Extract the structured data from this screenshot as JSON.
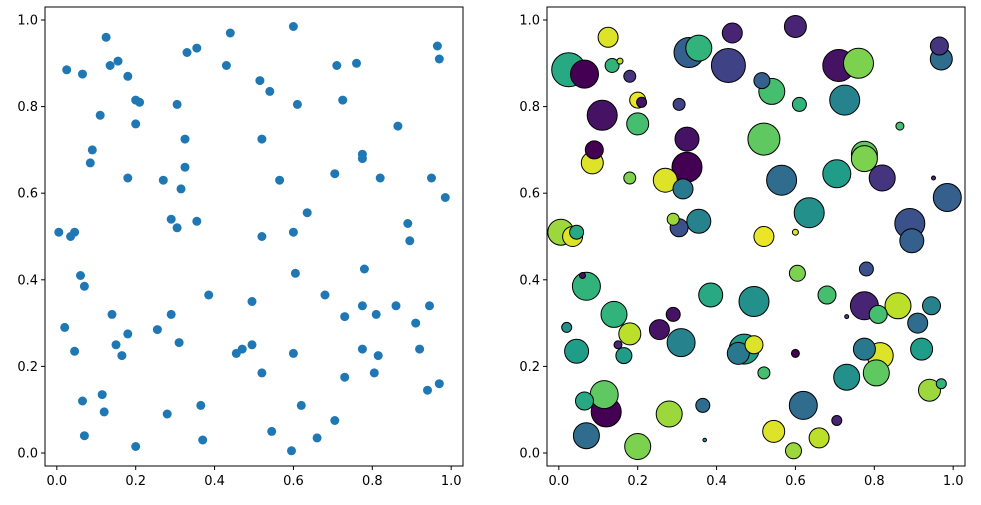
{
  "chart_data": [
    {
      "type": "scatter",
      "title": "",
      "xlabel": "",
      "ylabel": "",
      "xlim": [
        -0.03,
        1.03
      ],
      "ylim": [
        -0.03,
        1.03
      ],
      "xticks": [
        "0.0",
        "0.2",
        "0.4",
        "0.6",
        "0.8",
        "1.0"
      ],
      "yticks": [
        "0.0",
        "0.2",
        "0.4",
        "0.6",
        "0.8",
        "1.0"
      ],
      "grid": false,
      "marker_color": "#1f77b4",
      "points": [
        [
          0.025,
          0.885
        ],
        [
          0.065,
          0.875
        ],
        [
          0.125,
          0.96
        ],
        [
          0.135,
          0.895
        ],
        [
          0.155,
          0.905
        ],
        [
          0.18,
          0.87
        ],
        [
          0.2,
          0.815
        ],
        [
          0.21,
          0.81
        ],
        [
          0.11,
          0.78
        ],
        [
          0.2,
          0.76
        ],
        [
          0.09,
          0.7
        ],
        [
          0.085,
          0.67
        ],
        [
          0.18,
          0.635
        ],
        [
          0.33,
          0.925
        ],
        [
          0.355,
          0.935
        ],
        [
          0.43,
          0.895
        ],
        [
          0.44,
          0.97
        ],
        [
          0.305,
          0.805
        ],
        [
          0.325,
          0.725
        ],
        [
          0.325,
          0.66
        ],
        [
          0.27,
          0.63
        ],
        [
          0.315,
          0.61
        ],
        [
          0.29,
          0.54
        ],
        [
          0.305,
          0.52
        ],
        [
          0.355,
          0.535
        ],
        [
          0.6,
          0.985
        ],
        [
          0.515,
          0.86
        ],
        [
          0.54,
          0.835
        ],
        [
          0.61,
          0.805
        ],
        [
          0.52,
          0.725
        ],
        [
          0.565,
          0.63
        ],
        [
          0.52,
          0.5
        ],
        [
          0.6,
          0.51
        ],
        [
          0.635,
          0.555
        ],
        [
          0.71,
          0.895
        ],
        [
          0.76,
          0.9
        ],
        [
          0.725,
          0.815
        ],
        [
          0.775,
          0.69
        ],
        [
          0.775,
          0.68
        ],
        [
          0.705,
          0.645
        ],
        [
          0.82,
          0.635
        ],
        [
          0.865,
          0.755
        ],
        [
          0.965,
          0.94
        ],
        [
          0.97,
          0.91
        ],
        [
          0.95,
          0.635
        ],
        [
          0.985,
          0.59
        ],
        [
          0.89,
          0.53
        ],
        [
          0.895,
          0.49
        ],
        [
          0.005,
          0.51
        ],
        [
          0.035,
          0.5
        ],
        [
          0.045,
          0.51
        ],
        [
          0.06,
          0.41
        ],
        [
          0.07,
          0.385
        ],
        [
          0.02,
          0.29
        ],
        [
          0.045,
          0.235
        ],
        [
          0.14,
          0.32
        ],
        [
          0.15,
          0.25
        ],
        [
          0.18,
          0.275
        ],
        [
          0.165,
          0.225
        ],
        [
          0.065,
          0.12
        ],
        [
          0.115,
          0.135
        ],
        [
          0.12,
          0.095
        ],
        [
          0.07,
          0.04
        ],
        [
          0.2,
          0.015
        ],
        [
          0.255,
          0.285
        ],
        [
          0.29,
          0.32
        ],
        [
          0.31,
          0.255
        ],
        [
          0.28,
          0.09
        ],
        [
          0.365,
          0.11
        ],
        [
          0.37,
          0.03
        ],
        [
          0.385,
          0.365
        ],
        [
          0.495,
          0.35
        ],
        [
          0.455,
          0.23
        ],
        [
          0.47,
          0.24
        ],
        [
          0.495,
          0.25
        ],
        [
          0.52,
          0.185
        ],
        [
          0.545,
          0.05
        ],
        [
          0.605,
          0.415
        ],
        [
          0.6,
          0.23
        ],
        [
          0.62,
          0.11
        ],
        [
          0.595,
          0.005
        ],
        [
          0.66,
          0.035
        ],
        [
          0.68,
          0.365
        ],
        [
          0.78,
          0.425
        ],
        [
          0.775,
          0.34
        ],
        [
          0.73,
          0.315
        ],
        [
          0.775,
          0.24
        ],
        [
          0.815,
          0.225
        ],
        [
          0.81,
          0.32
        ],
        [
          0.805,
          0.185
        ],
        [
          0.73,
          0.175
        ],
        [
          0.705,
          0.075
        ],
        [
          0.86,
          0.34
        ],
        [
          0.91,
          0.3
        ],
        [
          0.945,
          0.34
        ],
        [
          0.92,
          0.24
        ],
        [
          0.94,
          0.145
        ],
        [
          0.97,
          0.16
        ]
      ]
    },
    {
      "type": "scatter",
      "title": "",
      "xlabel": "",
      "ylabel": "",
      "xlim": [
        -0.03,
        1.03
      ],
      "ylim": [
        -0.03,
        1.03
      ],
      "xticks": [
        "0.0",
        "0.2",
        "0.4",
        "0.6",
        "0.8",
        "1.0"
      ],
      "yticks": [
        "0.0",
        "0.2",
        "0.4",
        "0.6",
        "0.8",
        "1.0"
      ],
      "grid": false,
      "colormap": "viridis",
      "edge_color": "#000000",
      "points": [
        [
          0.025,
          0.885,
          17,
          0.6
        ],
        [
          0.065,
          0.875,
          14,
          0.0
        ],
        [
          0.125,
          0.96,
          10,
          0.95
        ],
        [
          0.135,
          0.895,
          7,
          0.65
        ],
        [
          0.155,
          0.905,
          3,
          0.9
        ],
        [
          0.18,
          0.87,
          6,
          0.15
        ],
        [
          0.2,
          0.815,
          8,
          0.97
        ],
        [
          0.21,
          0.81,
          5,
          0.05
        ],
        [
          0.11,
          0.78,
          15,
          0.05
        ],
        [
          0.2,
          0.76,
          11,
          0.7
        ],
        [
          0.09,
          0.7,
          9,
          0.0
        ],
        [
          0.085,
          0.67,
          11,
          0.95
        ],
        [
          0.18,
          0.635,
          6,
          0.8
        ],
        [
          0.33,
          0.925,
          15,
          0.3
        ],
        [
          0.355,
          0.935,
          13,
          0.65
        ],
        [
          0.43,
          0.895,
          17,
          0.2
        ],
        [
          0.44,
          0.97,
          10,
          0.1
        ],
        [
          0.305,
          0.805,
          6,
          0.2
        ],
        [
          0.325,
          0.725,
          12,
          0.05
        ],
        [
          0.325,
          0.66,
          15,
          0.0
        ],
        [
          0.27,
          0.63,
          12,
          0.95
        ],
        [
          0.315,
          0.61,
          10,
          0.4
        ],
        [
          0.29,
          0.54,
          6,
          0.85
        ],
        [
          0.305,
          0.52,
          9,
          0.25
        ],
        [
          0.355,
          0.535,
          12,
          0.45
        ],
        [
          0.6,
          0.985,
          11,
          0.1
        ],
        [
          0.515,
          0.86,
          8,
          0.3
        ],
        [
          0.54,
          0.835,
          13,
          0.7
        ],
        [
          0.61,
          0.805,
          7,
          0.65
        ],
        [
          0.52,
          0.725,
          16,
          0.75
        ],
        [
          0.565,
          0.63,
          15,
          0.35
        ],
        [
          0.52,
          0.5,
          10,
          0.97
        ],
        [
          0.6,
          0.51,
          3,
          0.95
        ],
        [
          0.635,
          0.555,
          15,
          0.5
        ],
        [
          0.71,
          0.895,
          16,
          0.05
        ],
        [
          0.76,
          0.9,
          15,
          0.8
        ],
        [
          0.725,
          0.815,
          15,
          0.45
        ],
        [
          0.775,
          0.69,
          13,
          0.75
        ],
        [
          0.775,
          0.68,
          13,
          0.8
        ],
        [
          0.705,
          0.645,
          14,
          0.55
        ],
        [
          0.82,
          0.635,
          13,
          0.15
        ],
        [
          0.865,
          0.755,
          4,
          0.7
        ],
        [
          0.965,
          0.94,
          9,
          0.15
        ],
        [
          0.97,
          0.91,
          11,
          0.35
        ],
        [
          0.95,
          0.635,
          2,
          0.1
        ],
        [
          0.985,
          0.59,
          14,
          0.3
        ],
        [
          0.89,
          0.53,
          15,
          0.25
        ],
        [
          0.895,
          0.49,
          12,
          0.3
        ],
        [
          0.005,
          0.51,
          13,
          0.85
        ],
        [
          0.035,
          0.5,
          10,
          0.95
        ],
        [
          0.045,
          0.51,
          7,
          0.6
        ],
        [
          0.06,
          0.41,
          3,
          0.05
        ],
        [
          0.07,
          0.385,
          14,
          0.65
        ],
        [
          0.02,
          0.29,
          5,
          0.5
        ],
        [
          0.045,
          0.235,
          12,
          0.55
        ],
        [
          0.14,
          0.32,
          13,
          0.65
        ],
        [
          0.15,
          0.25,
          4,
          0.1
        ],
        [
          0.18,
          0.275,
          11,
          0.9
        ],
        [
          0.165,
          0.225,
          8,
          0.55
        ],
        [
          0.065,
          0.12,
          9,
          0.6
        ],
        [
          0.115,
          0.135,
          14,
          0.75
        ],
        [
          0.12,
          0.095,
          15,
          0.0
        ],
        [
          0.07,
          0.04,
          13,
          0.35
        ],
        [
          0.2,
          0.015,
          13,
          0.8
        ],
        [
          0.255,
          0.285,
          10,
          0.05
        ],
        [
          0.29,
          0.32,
          7,
          0.05
        ],
        [
          0.31,
          0.255,
          14,
          0.45
        ],
        [
          0.28,
          0.09,
          13,
          0.85
        ],
        [
          0.365,
          0.11,
          7,
          0.35
        ],
        [
          0.37,
          0.03,
          0,
          0.5
        ],
        [
          0.385,
          0.365,
          12,
          0.6
        ],
        [
          0.495,
          0.35,
          15,
          0.5
        ],
        [
          0.455,
          0.23,
          11,
          0.4
        ],
        [
          0.47,
          0.24,
          15,
          0.55
        ],
        [
          0.495,
          0.25,
          9,
          0.95
        ],
        [
          0.52,
          0.185,
          6,
          0.7
        ],
        [
          0.545,
          0.05,
          11,
          0.95
        ],
        [
          0.605,
          0.415,
          8,
          0.8
        ],
        [
          0.6,
          0.23,
          4,
          0.0
        ],
        [
          0.62,
          0.11,
          14,
          0.35
        ],
        [
          0.595,
          0.005,
          8,
          0.85
        ],
        [
          0.66,
          0.035,
          10,
          0.9
        ],
        [
          0.68,
          0.365,
          9,
          0.7
        ],
        [
          0.78,
          0.425,
          7,
          0.25
        ],
        [
          0.775,
          0.34,
          14,
          0.1
        ],
        [
          0.73,
          0.315,
          2,
          0.2
        ],
        [
          0.775,
          0.24,
          11,
          0.4
        ],
        [
          0.815,
          0.225,
          13,
          0.95
        ],
        [
          0.81,
          0.32,
          9,
          0.7
        ],
        [
          0.805,
          0.185,
          13,
          0.75
        ],
        [
          0.73,
          0.175,
          13,
          0.5
        ],
        [
          0.705,
          0.075,
          5,
          0.1
        ],
        [
          0.86,
          0.34,
          13,
          0.9
        ],
        [
          0.91,
          0.3,
          10,
          0.35
        ],
        [
          0.945,
          0.34,
          9,
          0.45
        ],
        [
          0.92,
          0.24,
          11,
          0.55
        ],
        [
          0.94,
          0.145,
          11,
          0.85
        ],
        [
          0.97,
          0.16,
          5,
          0.65
        ]
      ]
    }
  ]
}
